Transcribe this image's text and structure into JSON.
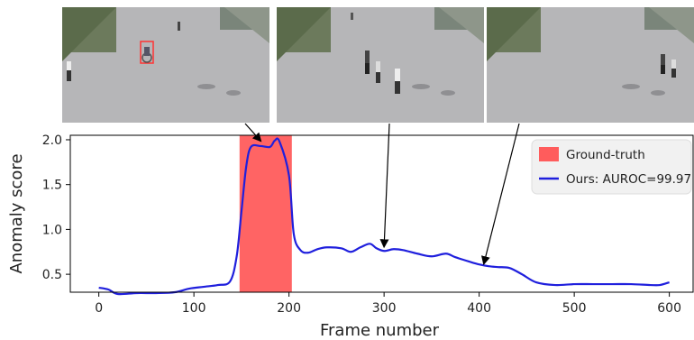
{
  "frames": [
    {
      "frame_number": 170,
      "has_bbox": true
    },
    {
      "frame_number": 300,
      "has_bbox": false
    },
    {
      "frame_number": 405,
      "has_bbox": false
    }
  ],
  "chart_data": {
    "type": "line",
    "xlabel": "Frame number",
    "ylabel": "Anomaly score",
    "xlim": [
      -30,
      625
    ],
    "ylim": [
      0.3,
      2.05
    ],
    "xticks": [
      0,
      100,
      200,
      300,
      400,
      500,
      600
    ],
    "yticks": [
      0.5,
      1.0,
      1.5,
      2.0
    ],
    "ytick_labels": [
      "0.5",
      "1.0",
      "1.5",
      "2.0"
    ],
    "grid": false,
    "legend_position": "top-right",
    "ground_truth": {
      "name": "Ground-truth",
      "x_start": 148,
      "x_end": 203,
      "color": "#ff5c5c"
    },
    "series": [
      {
        "name": "Ours: AUROC=99.97",
        "color": "#1f1fdd",
        "x": [
          0,
          10,
          20,
          40,
          60,
          80,
          95,
          110,
          125,
          138,
          145,
          150,
          155,
          160,
          170,
          180,
          185,
          190,
          200,
          205,
          212,
          220,
          230,
          240,
          255,
          265,
          275,
          285,
          292,
          300,
          310,
          320,
          335,
          350,
          365,
          375,
          390,
          400,
          410,
          420,
          432,
          445,
          460,
          480,
          500,
          520,
          540,
          560,
          580,
          590,
          600
        ],
        "values": [
          0.35,
          0.33,
          0.28,
          0.29,
          0.29,
          0.3,
          0.34,
          0.36,
          0.38,
          0.42,
          0.7,
          1.2,
          1.7,
          1.92,
          1.93,
          1.92,
          1.99,
          1.98,
          1.6,
          0.95,
          0.77,
          0.74,
          0.78,
          0.8,
          0.79,
          0.75,
          0.8,
          0.84,
          0.79,
          0.76,
          0.78,
          0.77,
          0.73,
          0.7,
          0.73,
          0.69,
          0.64,
          0.61,
          0.59,
          0.58,
          0.57,
          0.5,
          0.41,
          0.38,
          0.39,
          0.39,
          0.39,
          0.39,
          0.38,
          0.38,
          0.41
        ]
      }
    ],
    "arrows": [
      {
        "frame_index": 0,
        "x": 170,
        "y": 1.97
      },
      {
        "frame_index": 1,
        "x": 300,
        "y": 0.79
      },
      {
        "frame_index": 2,
        "x": 405,
        "y": 0.6
      }
    ]
  }
}
